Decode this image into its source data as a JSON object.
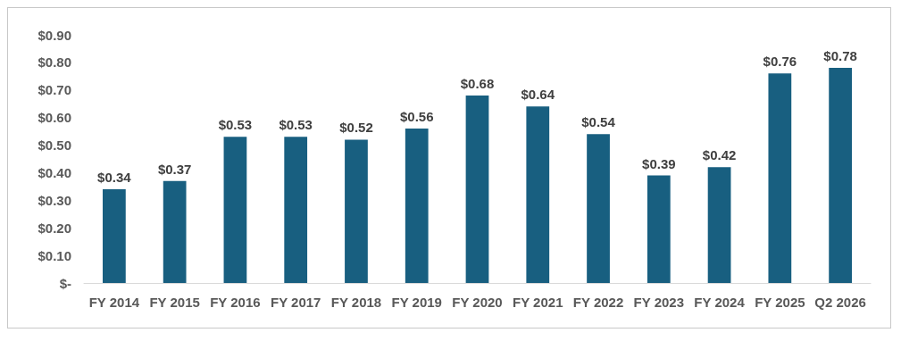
{
  "chart_data": {
    "type": "bar",
    "categories": [
      "FY 2014",
      "FY 2015",
      "FY 2016",
      "FY 2017",
      "FY 2018",
      "FY 2019",
      "FY 2020",
      "FY 2021",
      "FY 2022",
      "FY 2023",
      "FY 2024",
      "FY 2025",
      "Q2 2026"
    ],
    "values": [
      0.34,
      0.37,
      0.53,
      0.53,
      0.52,
      0.56,
      0.68,
      0.64,
      0.54,
      0.39,
      0.42,
      0.76,
      0.78
    ],
    "value_labels": [
      "$0.34",
      "$0.37",
      "$0.53",
      "$0.53",
      "$0.52",
      "$0.56",
      "$0.68",
      "$0.64",
      "$0.54",
      "$0.39",
      "$0.42",
      "$0.76",
      "$0.78"
    ],
    "color": "#185f80",
    "ylim": [
      0,
      0.9
    ],
    "yticks": [
      {
        "value": 0,
        "label": "$-"
      },
      {
        "value": 0.1,
        "label": "$0.10"
      },
      {
        "value": 0.2,
        "label": "$0.20"
      },
      {
        "value": 0.3,
        "label": "$0.30"
      },
      {
        "value": 0.4,
        "label": "$0.40"
      },
      {
        "value": 0.5,
        "label": "$0.50"
      },
      {
        "value": 0.6,
        "label": "$0.60"
      },
      {
        "value": 0.7,
        "label": "$0.70"
      },
      {
        "value": 0.8,
        "label": "$0.80"
      },
      {
        "value": 0.9,
        "label": "$0.90"
      }
    ],
    "grid": false
  }
}
